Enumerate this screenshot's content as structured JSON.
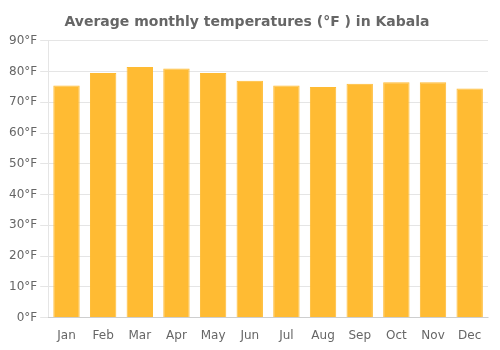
{
  "chart_data": {
    "type": "bar",
    "title": "Average monthly temperatures (°F ) in Kabala",
    "categories": [
      "Jan",
      "Feb",
      "Mar",
      "Apr",
      "May",
      "Jun",
      "Jul",
      "Aug",
      "Sep",
      "Oct",
      "Nov",
      "Dec"
    ],
    "values": [
      75.5,
      79.5,
      81.5,
      81.0,
      79.5,
      77.0,
      75.5,
      75.0,
      76.0,
      76.5,
      76.5,
      74.5
    ],
    "color": "#FFBB33",
    "ylim": [
      0,
      90
    ],
    "yticks": [
      {
        "value": 0,
        "label": "0°F"
      },
      {
        "value": 10,
        "label": "10°F"
      },
      {
        "value": 20,
        "label": "20°F"
      },
      {
        "value": 30,
        "label": "30°F"
      },
      {
        "value": 40,
        "label": "40°F"
      },
      {
        "value": 50,
        "label": "50°F"
      },
      {
        "value": 60,
        "label": "60°F"
      },
      {
        "value": 70,
        "label": "70°F"
      },
      {
        "value": 80,
        "label": "80°F"
      },
      {
        "value": 90,
        "label": "90°F"
      }
    ],
    "grid": true
  }
}
